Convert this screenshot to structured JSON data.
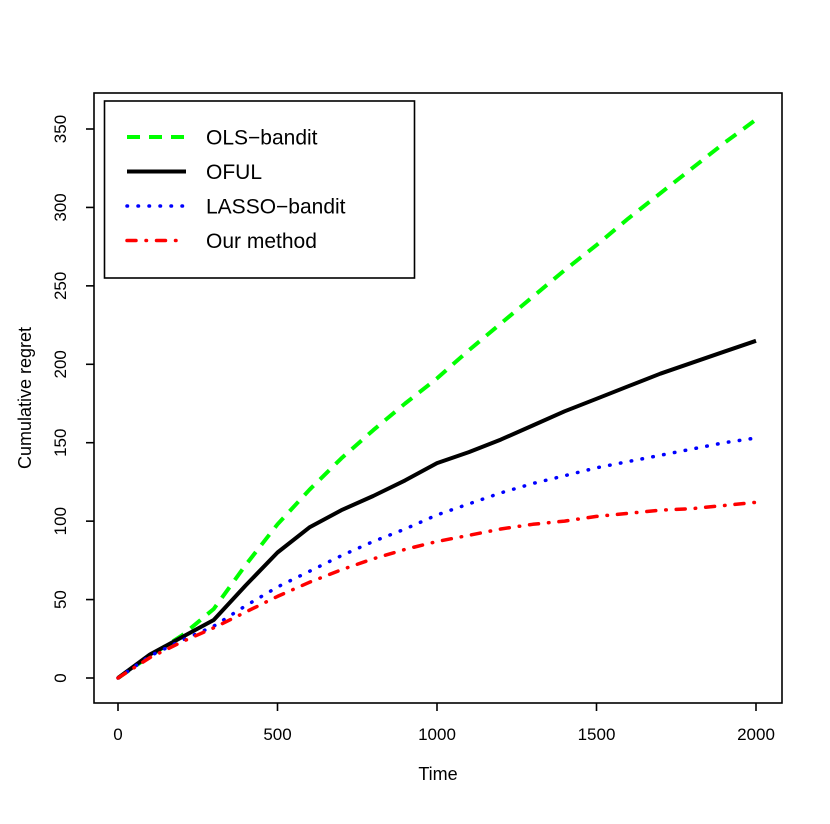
{
  "chart_data": {
    "type": "line",
    "title": "",
    "xlabel": "Time",
    "ylabel": "Cumulative regret",
    "xlim": [
      0,
      2000
    ],
    "ylim": [
      0,
      356
    ],
    "xticks": [
      0,
      500,
      1000,
      1500,
      2000
    ],
    "yticks": [
      0,
      50,
      100,
      150,
      200,
      250,
      300,
      350
    ],
    "grid": false,
    "legend_position": "top-left",
    "axis_color": "#000000",
    "background_color": "#ffffff",
    "x": [
      0,
      100,
      200,
      300,
      400,
      500,
      600,
      700,
      800,
      900,
      1000,
      1100,
      1200,
      1300,
      1400,
      1500,
      1600,
      1700,
      1800,
      1900,
      2000
    ],
    "series": [
      {
        "name": "OLS−bandit",
        "color": "#00ff00",
        "style": "dashed",
        "values": [
          0,
          14,
          27,
          44,
          72,
          98,
          120,
          140,
          158,
          175,
          191,
          209,
          226,
          243,
          260,
          276,
          293,
          309,
          325,
          341,
          356
        ]
      },
      {
        "name": "OFUL",
        "color": "#000000",
        "style": "solid",
        "values": [
          0,
          15,
          26,
          37,
          59,
          80,
          96,
          107,
          116,
          126,
          137,
          144,
          152,
          161,
          170,
          178,
          186,
          194,
          201,
          208,
          215
        ]
      },
      {
        "name": "LASSO−bandit",
        "color": "#0000ff",
        "style": "dotted",
        "values": [
          0,
          14,
          24,
          33,
          46,
          58,
          68,
          78,
          87,
          95,
          104,
          111,
          118,
          124,
          129,
          134,
          138,
          142,
          146,
          150,
          153
        ]
      },
      {
        "name": "Our method",
        "color": "#ff0000",
        "style": "dashdot",
        "values": [
          0,
          13,
          23,
          32,
          42,
          52,
          61,
          69,
          76,
          82,
          87,
          91,
          95,
          98,
          100,
          103,
          105,
          107,
          108,
          110,
          112
        ]
      }
    ]
  }
}
